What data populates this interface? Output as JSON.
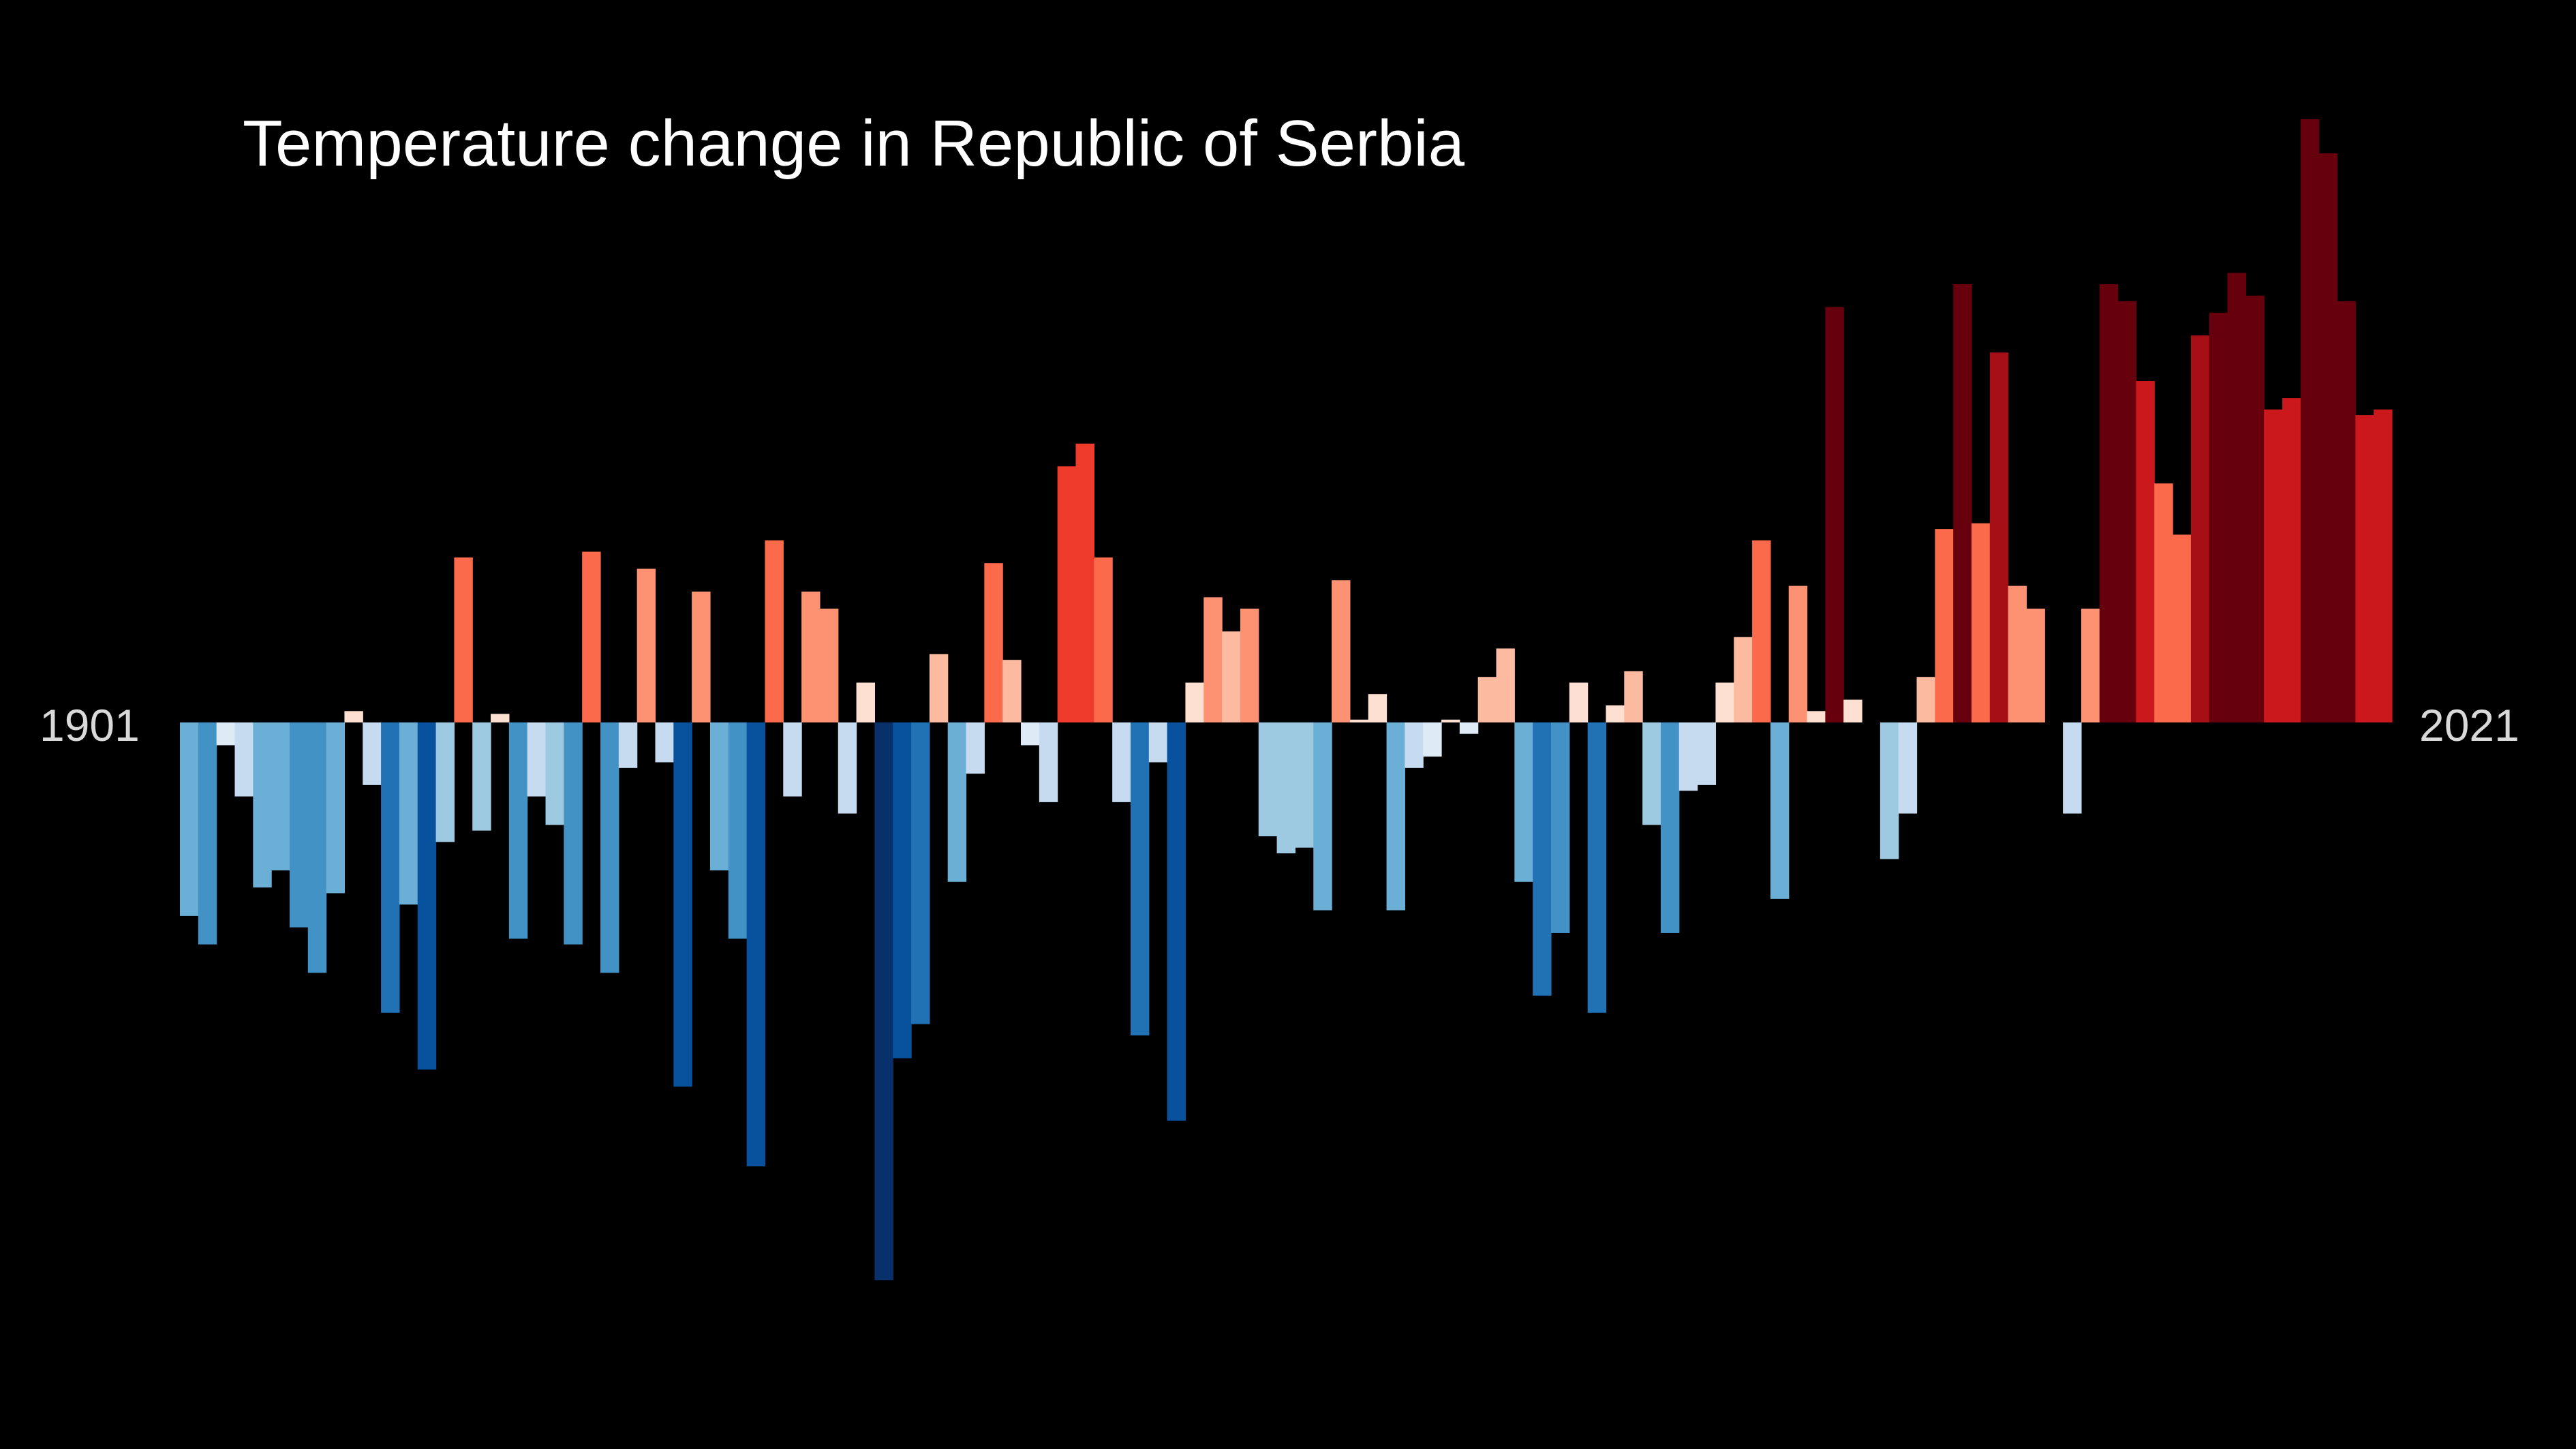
{
  "chart_data": {
    "type": "bar",
    "title": "Temperature change in Republic of Serbia",
    "xlabel": "",
    "ylabel": "",
    "x_start_label": "1901",
    "x_end_label": "2021",
    "grid": false,
    "legend": "none",
    "background": "#000000",
    "ylim": [
      -0.98,
      1.06
    ],
    "x": [
      1901,
      1902,
      1903,
      1904,
      1905,
      1906,
      1907,
      1908,
      1909,
      1910,
      1911,
      1912,
      1913,
      1914,
      1915,
      1916,
      1917,
      1918,
      1919,
      1920,
      1921,
      1922,
      1923,
      1924,
      1925,
      1926,
      1927,
      1928,
      1929,
      1930,
      1931,
      1932,
      1933,
      1934,
      1935,
      1936,
      1937,
      1938,
      1939,
      1940,
      1941,
      1942,
      1943,
      1944,
      1945,
      1946,
      1947,
      1948,
      1949,
      1950,
      1951,
      1952,
      1953,
      1954,
      1955,
      1956,
      1957,
      1958,
      1959,
      1960,
      1961,
      1962,
      1963,
      1964,
      1965,
      1966,
      1967,
      1968,
      1969,
      1970,
      1971,
      1972,
      1973,
      1974,
      1975,
      1976,
      1977,
      1978,
      1979,
      1980,
      1981,
      1982,
      1983,
      1984,
      1985,
      1986,
      1987,
      1988,
      1989,
      1990,
      1991,
      1992,
      1993,
      1994,
      1995,
      1996,
      1997,
      1998,
      1999,
      2000,
      2001,
      2002,
      2003,
      2004,
      2005,
      2006,
      2007,
      2008,
      2009,
      2010,
      2011,
      2012,
      2013,
      2014,
      2015,
      2016,
      2017,
      2018,
      2019,
      2020,
      2021
    ],
    "values": [
      -0.34,
      -0.39,
      -0.04,
      -0.13,
      -0.29,
      -0.26,
      -0.36,
      -0.44,
      -0.3,
      0.02,
      -0.11,
      -0.51,
      -0.32,
      -0.61,
      -0.21,
      0.29,
      -0.19,
      0.015,
      -0.38,
      -0.13,
      -0.18,
      -0.39,
      0.3,
      -0.44,
      -0.08,
      0.27,
      -0.07,
      -0.64,
      0.23,
      -0.26,
      -0.38,
      -0.78,
      0.32,
      -0.13,
      0.23,
      0.2,
      -0.16,
      0.07,
      -0.98,
      -0.59,
      -0.53,
      0.12,
      -0.28,
      -0.09,
      0.28,
      0.11,
      -0.04,
      -0.14,
      0.45,
      0.49,
      0.29,
      -0.14,
      -0.55,
      -0.07,
      -0.7,
      0.07,
      0.22,
      0.16,
      0.2,
      -0.2,
      -0.23,
      -0.22,
      -0.33,
      0.25,
      0.005,
      0.05,
      -0.33,
      -0.08,
      -0.06,
      0.005,
      -0.02,
      0.08,
      0.13,
      -0.28,
      -0.48,
      -0.37,
      0.07,
      -0.51,
      0.03,
      0.09,
      -0.18,
      -0.37,
      -0.12,
      -0.11,
      0.07,
      0.15,
      0.32,
      -0.31,
      0.24,
      0.02,
      0.73,
      0.04,
      0.0,
      -0.24,
      -0.16,
      0.08,
      0.34,
      0.77,
      0.35,
      0.65,
      0.24,
      0.2,
      0.0,
      -0.16,
      0.2,
      0.77,
      0.74,
      0.6,
      0.42,
      0.33,
      0.68,
      0.72,
      0.79,
      0.75,
      0.55,
      0.57,
      1.06,
      1.0,
      0.74,
      0.54,
      0.55
    ],
    "colors": {
      "cold_extreme": "#08306b",
      "cold_strong": "#08519c",
      "cold": "#2171b5",
      "cool": "#4292c6",
      "cool_mid": "#6baed6",
      "cool_light": "#9ecae1",
      "cool_pale": "#c6dbef",
      "cool_faint": "#deebf7",
      "warm_faint": "#fee0d2",
      "warm_pale": "#fcbba1",
      "warm_light": "#fc9272",
      "warm_mid": "#fb6a4a",
      "warm": "#ef3b2c",
      "hot": "#cb181d",
      "hot_strong": "#a50f15",
      "hot_extreme": "#67000d"
    }
  }
}
